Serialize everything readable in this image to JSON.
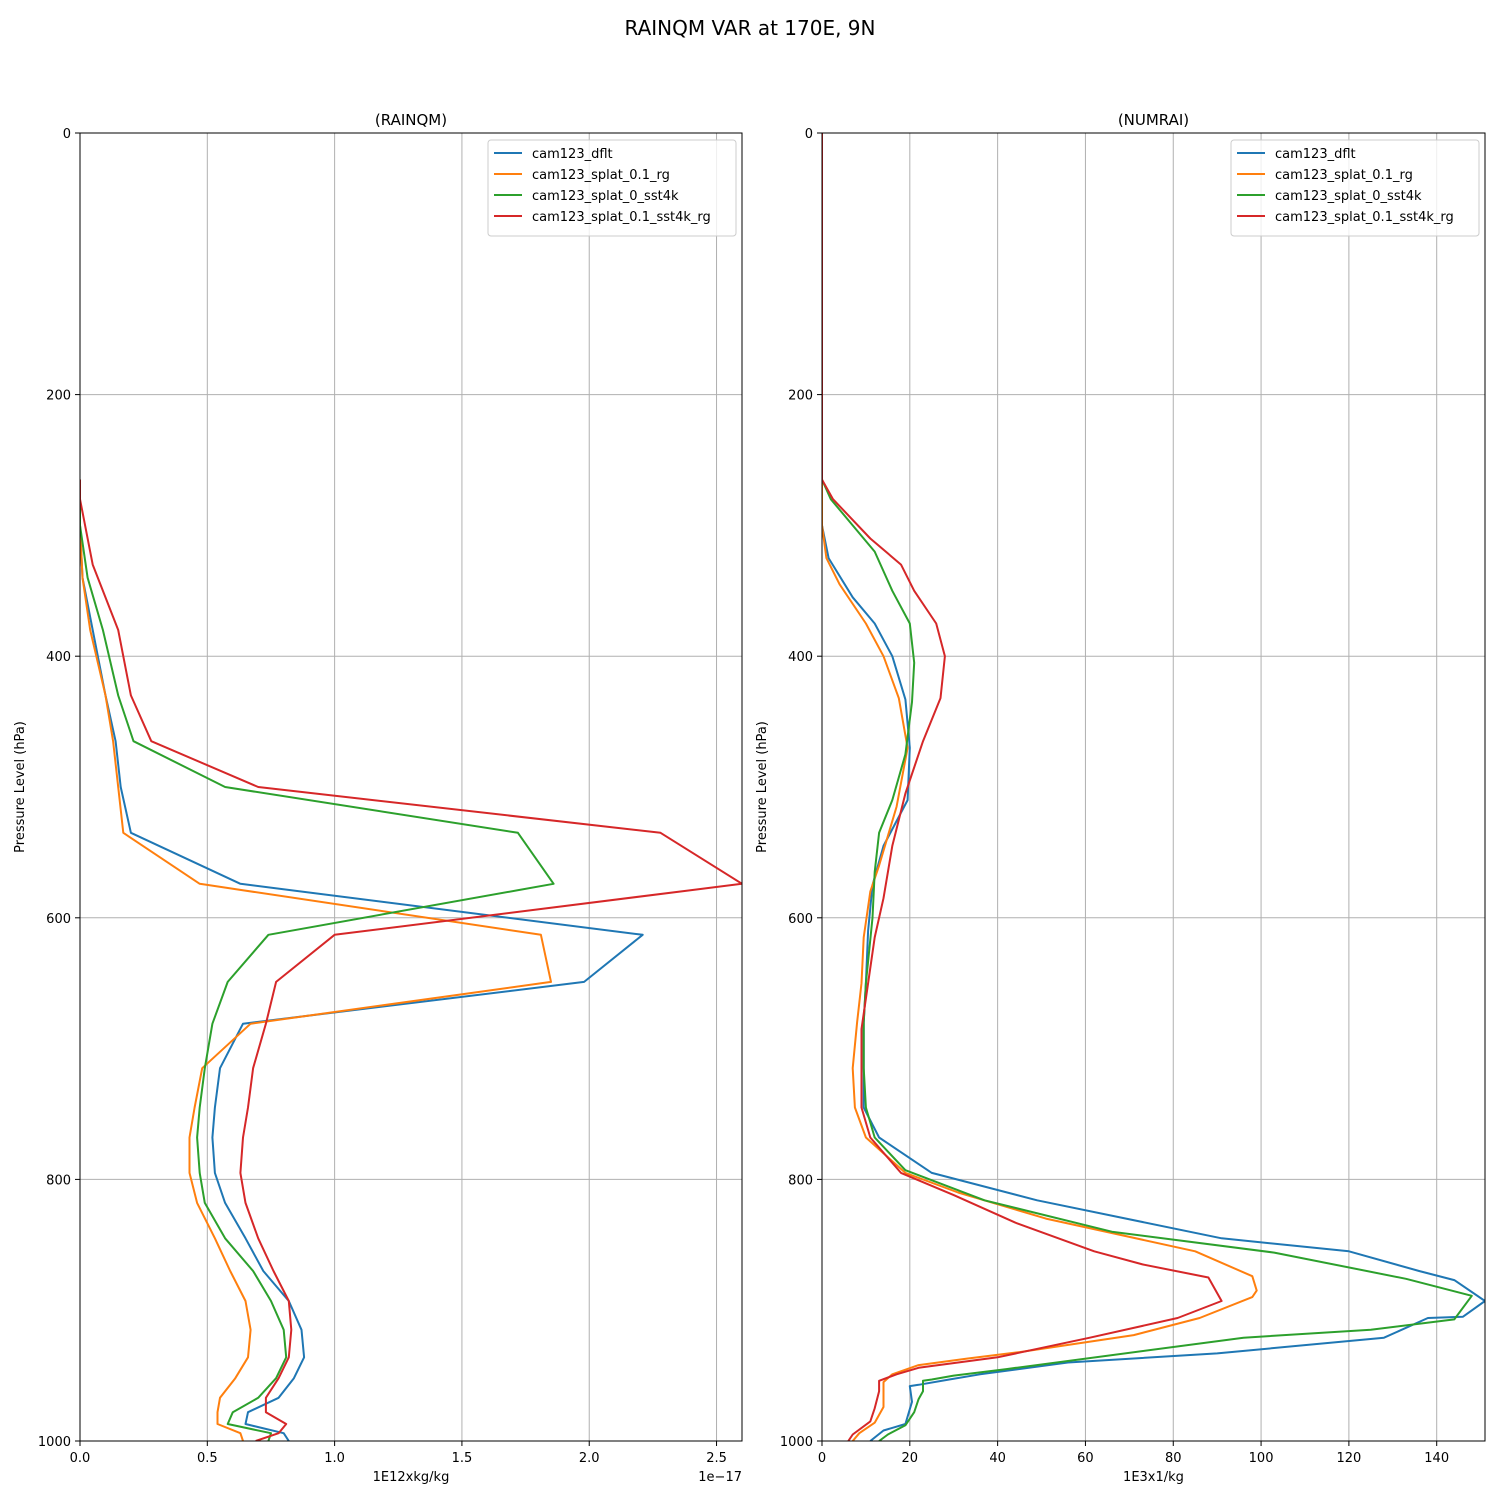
{
  "suptitle": "RAINQM VAR at 170E, 9N",
  "colors": {
    "cam123_dflt": "#1f77b4",
    "cam123_splat_0.1_rg": "#ff7f0e",
    "cam123_splat_0_sst4k": "#2ca02c",
    "cam123_splat_0.1_sst4k_rg": "#d62728"
  },
  "chart_data": [
    {
      "type": "line",
      "title": "(RAINQM)",
      "xlabel": "1E12xkg/kg",
      "ylabel": "Pressure Level (hPa)",
      "offset_label": "1e−17",
      "xlim": [
        0,
        2.6
      ],
      "ylim": [
        1000,
        0
      ],
      "xticks": [
        0,
        0.5,
        1.0,
        1.5,
        2.0,
        2.5
      ],
      "xtick_labels": [
        "0.0",
        "0.5",
        "1.0",
        "1.5",
        "2.0",
        "2.5"
      ],
      "yticks": [
        0,
        200,
        400,
        600,
        800,
        1000
      ],
      "ytick_labels": [
        "0",
        "200",
        "400",
        "600",
        "800",
        "1000"
      ],
      "grid": true,
      "legend_position": "upper right",
      "series": [
        {
          "name": "cam123_dflt",
          "points": [
            [
              0,
              265
            ],
            [
              0,
              300
            ],
            [
              0.01,
              340
            ],
            [
              0.05,
              380
            ],
            [
              0.1,
              430
            ],
            [
              0.14,
              465
            ],
            [
              0.16,
              500
            ],
            [
              0.2,
              535
            ],
            [
              0.63,
              574
            ],
            [
              2.21,
              613
            ],
            [
              1.98,
              649
            ],
            [
              0.64,
              681
            ],
            [
              0.55,
              715
            ],
            [
              0.53,
              745
            ],
            [
              0.52,
              768
            ],
            [
              0.53,
              795
            ],
            [
              0.57,
              818
            ],
            [
              0.65,
              845
            ],
            [
              0.72,
              870
            ],
            [
              0.82,
              893
            ],
            [
              0.87,
              915
            ],
            [
              0.88,
              936
            ],
            [
              0.84,
              952
            ],
            [
              0.78,
              967
            ],
            [
              0.66,
              978
            ],
            [
              0.65,
              987
            ],
            [
              0.8,
              994
            ],
            [
              0.82,
              1000
            ]
          ]
        },
        {
          "name": "cam123_splat_0.1_rg",
          "points": [
            [
              0,
              265
            ],
            [
              0,
              300
            ],
            [
              0.01,
              340
            ],
            [
              0.04,
              380
            ],
            [
              0.1,
              430
            ],
            [
              0.13,
              465
            ],
            [
              0.15,
              500
            ],
            [
              0.17,
              535
            ],
            [
              0.47,
              574
            ],
            [
              1.81,
              613
            ],
            [
              1.85,
              649
            ],
            [
              0.67,
              681
            ],
            [
              0.48,
              715
            ],
            [
              0.45,
              745
            ],
            [
              0.43,
              768
            ],
            [
              0.43,
              795
            ],
            [
              0.46,
              818
            ],
            [
              0.53,
              845
            ],
            [
              0.59,
              870
            ],
            [
              0.65,
              893
            ],
            [
              0.67,
              915
            ],
            [
              0.66,
              936
            ],
            [
              0.61,
              952
            ],
            [
              0.55,
              967
            ],
            [
              0.54,
              978
            ],
            [
              0.54,
              987
            ],
            [
              0.63,
              994
            ],
            [
              0.64,
              1000
            ]
          ]
        },
        {
          "name": "cam123_splat_0_sst4k",
          "points": [
            [
              0,
              265
            ],
            [
              0,
              300
            ],
            [
              0.03,
              340
            ],
            [
              0.09,
              380
            ],
            [
              0.15,
              430
            ],
            [
              0.21,
              465
            ],
            [
              0.57,
              500
            ],
            [
              1.72,
              535
            ],
            [
              1.86,
              574
            ],
            [
              0.74,
              613
            ],
            [
              0.58,
              649
            ],
            [
              0.52,
              681
            ],
            [
              0.49,
              715
            ],
            [
              0.47,
              745
            ],
            [
              0.46,
              768
            ],
            [
              0.47,
              795
            ],
            [
              0.49,
              818
            ],
            [
              0.57,
              845
            ],
            [
              0.68,
              870
            ],
            [
              0.75,
              893
            ],
            [
              0.8,
              915
            ],
            [
              0.81,
              936
            ],
            [
              0.77,
              952
            ],
            [
              0.7,
              967
            ],
            [
              0.6,
              978
            ],
            [
              0.58,
              987
            ],
            [
              0.75,
              994
            ],
            [
              0.74,
              1000
            ]
          ]
        },
        {
          "name": "cam123_splat_0.1_sst4k_rg",
          "points": [
            [
              0,
              265
            ],
            [
              0,
              280
            ],
            [
              0.05,
              330
            ],
            [
              0.15,
              380
            ],
            [
              0.2,
              430
            ],
            [
              0.28,
              465
            ],
            [
              0.7,
              500
            ],
            [
              2.28,
              535
            ],
            [
              2.6,
              574
            ],
            [
              1.0,
              613
            ],
            [
              0.77,
              649
            ],
            [
              0.73,
              681
            ],
            [
              0.68,
              715
            ],
            [
              0.66,
              745
            ],
            [
              0.64,
              768
            ],
            [
              0.63,
              795
            ],
            [
              0.65,
              818
            ],
            [
              0.7,
              845
            ],
            [
              0.76,
              870
            ],
            [
              0.82,
              893
            ],
            [
              0.83,
              915
            ],
            [
              0.82,
              936
            ],
            [
              0.78,
              952
            ],
            [
              0.73,
              967
            ],
            [
              0.73,
              978
            ],
            [
              0.81,
              987
            ],
            [
              0.78,
              994
            ],
            [
              0.69,
              1000
            ]
          ]
        }
      ]
    },
    {
      "type": "line",
      "title": "(NUMRAI)",
      "xlabel": "1E3x1/kg",
      "ylabel": "Pressure Level (hPa)",
      "xlim": [
        0,
        151
      ],
      "ylim": [
        1000,
        0
      ],
      "xticks": [
        0,
        20,
        40,
        60,
        80,
        100,
        120,
        140
      ],
      "xtick_labels": [
        "0",
        "20",
        "40",
        "60",
        "80",
        "100",
        "120",
        "140"
      ],
      "yticks": [
        0,
        200,
        400,
        600,
        800,
        1000
      ],
      "ytick_labels": [
        "0",
        "200",
        "400",
        "600",
        "800",
        "1000"
      ],
      "grid": true,
      "legend_position": "upper right",
      "series": [
        {
          "name": "cam123_dflt",
          "points": [
            [
              0,
              0
            ],
            [
              0,
              300
            ],
            [
              1.5,
              325
            ],
            [
              7,
              355
            ],
            [
              12,
              375
            ],
            [
              16,
              400
            ],
            [
              19,
              433
            ],
            [
              20,
              470
            ],
            [
              19.5,
              510
            ],
            [
              14,
              545
            ],
            [
              11.5,
              575
            ],
            [
              10.5,
              610
            ],
            [
              10,
              650
            ],
            [
              9.5,
              680
            ],
            [
              9.5,
              715
            ],
            [
              9.5,
              745
            ],
            [
              13,
              768
            ],
            [
              25,
              795
            ],
            [
              49,
              816
            ],
            [
              91,
              845
            ],
            [
              120,
              855
            ],
            [
              136,
              870
            ],
            [
              144,
              877
            ],
            [
              151,
              893
            ],
            [
              146,
              905
            ],
            [
              138,
              906
            ],
            [
              128,
              921
            ],
            [
              90,
              933
            ],
            [
              56,
              940
            ],
            [
              36,
              949
            ],
            [
              29,
              953
            ],
            [
              22,
              957
            ],
            [
              20,
              958
            ],
            [
              20.5,
              970
            ],
            [
              19,
              987
            ],
            [
              14,
              992
            ],
            [
              11,
              1000
            ]
          ]
        },
        {
          "name": "cam123_splat_0.1_rg",
          "points": [
            [
              0,
              0
            ],
            [
              0,
              300
            ],
            [
              1,
              325
            ],
            [
              4,
              345
            ],
            [
              10,
              375
            ],
            [
              14,
              400
            ],
            [
              17.5,
              432
            ],
            [
              19.5,
              470
            ],
            [
              17,
              515
            ],
            [
              13,
              560
            ],
            [
              11,
              580
            ],
            [
              9.5,
              615
            ],
            [
              9,
              650
            ],
            [
              8,
              680
            ],
            [
              7,
              715
            ],
            [
              7.5,
              745
            ],
            [
              10,
              768
            ],
            [
              19,
              795
            ],
            [
              31,
              810
            ],
            [
              51,
              830
            ],
            [
              85,
              855
            ],
            [
              98,
              874
            ],
            [
              99,
              885
            ],
            [
              98,
              890
            ],
            [
              86,
              906
            ],
            [
              71,
              919
            ],
            [
              45,
              932
            ],
            [
              33,
              937
            ],
            [
              22,
              942
            ],
            [
              16,
              949
            ],
            [
              14,
              955
            ],
            [
              14,
              961
            ],
            [
              14,
              974
            ],
            [
              12,
              986
            ],
            [
              8.5,
              994
            ],
            [
              7,
              1000
            ]
          ]
        },
        {
          "name": "cam123_splat_0_sst4k",
          "points": [
            [
              0,
              0
            ],
            [
              0,
              265
            ],
            [
              2,
              280
            ],
            [
              7,
              300
            ],
            [
              12,
              320
            ],
            [
              16,
              350
            ],
            [
              20,
              375
            ],
            [
              21,
              405
            ],
            [
              20.5,
              435
            ],
            [
              19,
              475
            ],
            [
              16,
              510
            ],
            [
              13,
              535
            ],
            [
              12,
              565
            ],
            [
              11.5,
              600
            ],
            [
              10,
              650
            ],
            [
              9.5,
              680
            ],
            [
              9.5,
              715
            ],
            [
              10,
              745
            ],
            [
              12,
              768
            ],
            [
              19,
              793
            ],
            [
              37,
              816
            ],
            [
              66,
              840
            ],
            [
              103,
              856
            ],
            [
              133,
              876
            ],
            [
              148,
              889
            ],
            [
              144,
              907
            ],
            [
              125,
              915
            ],
            [
              96,
              921
            ],
            [
              42,
              945
            ],
            [
              30,
              950
            ],
            [
              25,
              953
            ],
            [
              23,
              954
            ],
            [
              23,
              962
            ],
            [
              22,
              968
            ],
            [
              21,
              978
            ],
            [
              19,
              988
            ],
            [
              15,
              995
            ],
            [
              13,
              1000
            ]
          ]
        },
        {
          "name": "cam123_splat_0.1_sst4k_rg",
          "points": [
            [
              0,
              0
            ],
            [
              0,
              265
            ],
            [
              2.5,
              280
            ],
            [
              11,
              310
            ],
            [
              18,
              330
            ],
            [
              21,
              350
            ],
            [
              26,
              375
            ],
            [
              28,
              400
            ],
            [
              27,
              432
            ],
            [
              23,
              465
            ],
            [
              19,
              505
            ],
            [
              16,
              545
            ],
            [
              14,
              585
            ],
            [
              12,
              615
            ],
            [
              10.5,
              650
            ],
            [
              9,
              685
            ],
            [
              9,
              715
            ],
            [
              9,
              745
            ],
            [
              11,
              768
            ],
            [
              18,
              795
            ],
            [
              30,
              812
            ],
            [
              44,
              833
            ],
            [
              62,
              855
            ],
            [
              73,
              865
            ],
            [
              88,
              875
            ],
            [
              91,
              893
            ],
            [
              81,
              906
            ],
            [
              61,
              921
            ],
            [
              40,
              936
            ],
            [
              22,
              944
            ],
            [
              17,
              949
            ],
            [
              13,
              954
            ],
            [
              13,
              958
            ],
            [
              13,
              962
            ],
            [
              12,
              975
            ],
            [
              11,
              985
            ],
            [
              7,
              995
            ],
            [
              6,
              1000
            ]
          ]
        }
      ]
    }
  ]
}
